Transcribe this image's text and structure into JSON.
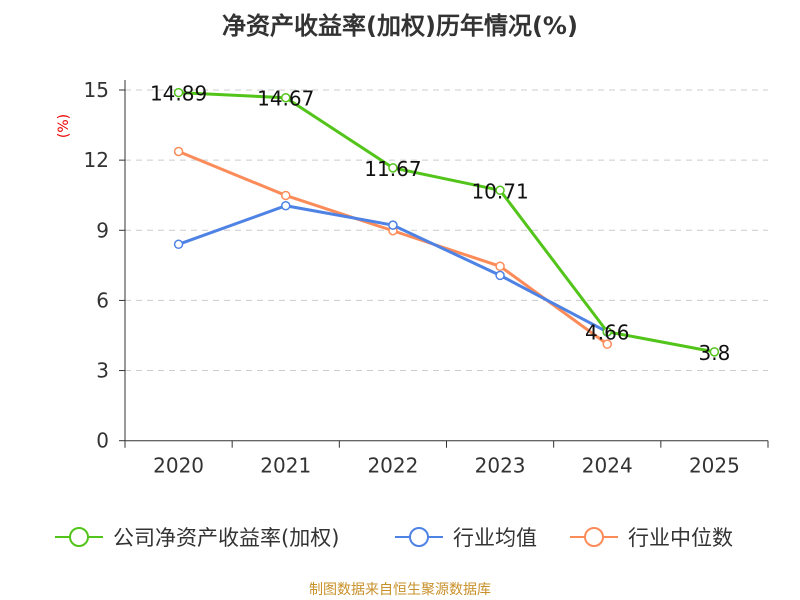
{
  "chart_data": {
    "type": "line",
    "title": "净资产收益率(加权)历年情况(%)",
    "ylabel": "(%)",
    "categories": [
      "2020",
      "2021",
      "2022",
      "2023",
      "2024",
      "2025"
    ],
    "ylim": [
      0,
      15
    ],
    "yticks": [
      0,
      3,
      6,
      9,
      12,
      15
    ],
    "grid": true,
    "legend_position": "bottom",
    "series": [
      {
        "name": "公司净资产收益率(加权)",
        "color": "#52c41a",
        "values": [
          14.89,
          14.67,
          11.67,
          10.71,
          4.66,
          3.8
        ],
        "labels": [
          "14.89",
          "14.67",
          "11.67",
          "10.71",
          "4.66",
          "3.8"
        ]
      },
      {
        "name": "行业均值",
        "color": "#4e82e4",
        "values": [
          8.4,
          10.05,
          9.22,
          7.07,
          4.65,
          null
        ]
      },
      {
        "name": "行业中位数",
        "color": "#fb8c5a",
        "values": [
          12.37,
          10.49,
          8.98,
          7.46,
          4.13,
          null
        ]
      }
    ]
  },
  "source": "制图数据来自恒生聚源数据库"
}
